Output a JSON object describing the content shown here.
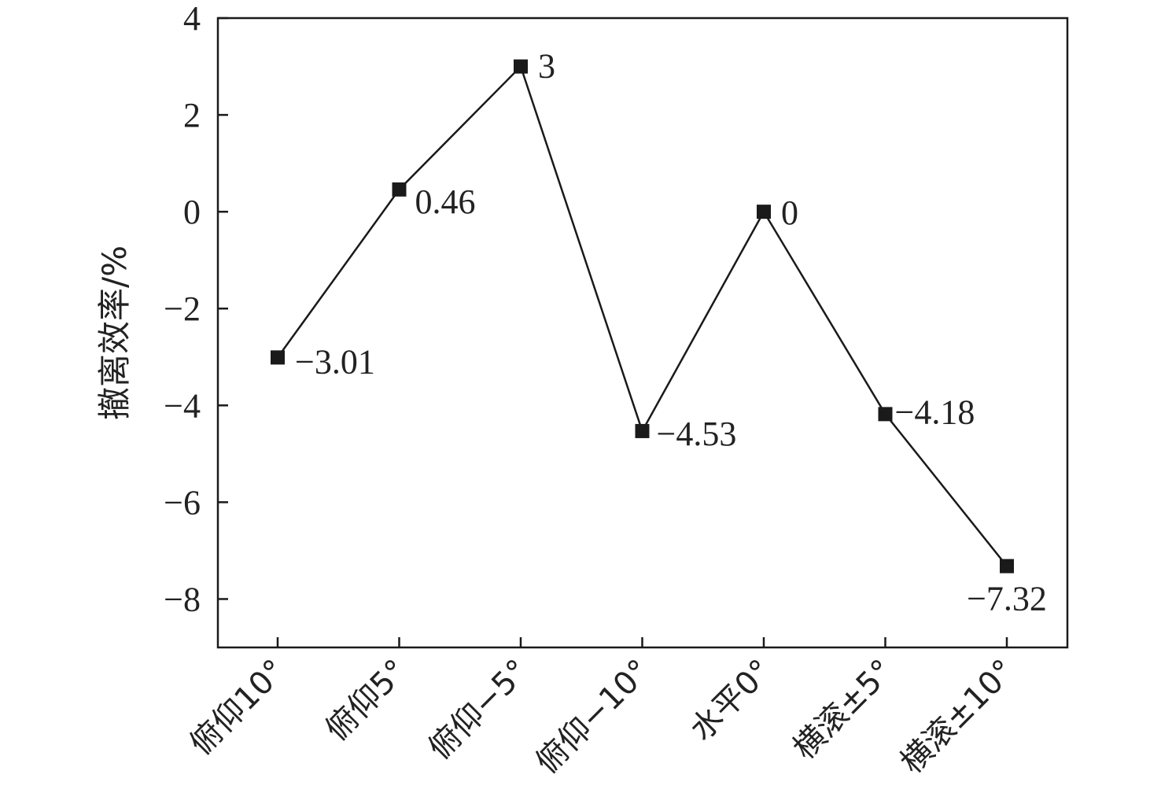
{
  "chart_data": {
    "type": "line",
    "categories": [
      "俯仰10°",
      "俯仰5°",
      "俯仰−5°",
      "俯仰−10°",
      "水平0°",
      "横滚±5°",
      "横滚±10°"
    ],
    "series": [
      {
        "values": [
          -3.01,
          0.46,
          3,
          -4.53,
          0,
          -4.18,
          -7.32
        ]
      }
    ],
    "data_labels": [
      "−3.01",
      "0.46",
      "3",
      "−4.53",
      "0",
      "−4.18",
      "−7.32"
    ],
    "ylabel": "撤离效率/%",
    "xlabel": "",
    "title": "",
    "ylim": [
      -9,
      4
    ],
    "yticks": [
      4,
      2,
      0,
      -2,
      -4,
      -6,
      -8
    ],
    "ytick_labels": [
      "4",
      "2",
      "0",
      "−2",
      "−4",
      "−6",
      "−8"
    ],
    "marker": "square",
    "line_color": "#1a1a1a",
    "grid": false,
    "legend": "none"
  }
}
